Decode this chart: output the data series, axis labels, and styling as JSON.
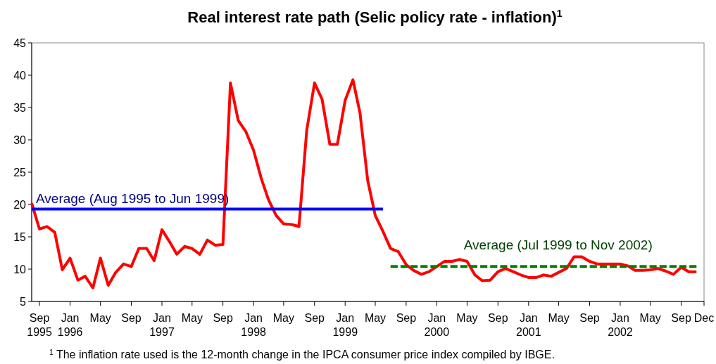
{
  "chart_data": {
    "type": "line",
    "title": "Real interest rate path (Selic policy rate - inflation)$^{1}$",
    "xlim": [
      "1995-08",
      "2002-12"
    ],
    "xticks": [
      {
        "value": "1995-09",
        "label": "Sep\n1995"
      },
      {
        "value": "1996-01",
        "label": "Jan\n1996"
      },
      {
        "value": "1996-05",
        "label": "May"
      },
      {
        "value": "1996-09",
        "label": "Sep"
      },
      {
        "value": "1997-01",
        "label": "Jan\n1997"
      },
      {
        "value": "1997-05",
        "label": "May"
      },
      {
        "value": "1997-09",
        "label": "Sep"
      },
      {
        "value": "1998-01",
        "label": "Jan\n1998"
      },
      {
        "value": "1998-05",
        "label": "May"
      },
      {
        "value": "1998-09",
        "label": "Sep"
      },
      {
        "value": "1999-01",
        "label": "Jan\n1999"
      },
      {
        "value": "1999-05",
        "label": "May"
      },
      {
        "value": "1999-09",
        "label": "Sep"
      },
      {
        "value": "2000-01",
        "label": "Jan\n2000"
      },
      {
        "value": "2000-05",
        "label": "May"
      },
      {
        "value": "2000-09",
        "label": "Sep"
      },
      {
        "value": "2001-01",
        "label": "Jan\n2001"
      },
      {
        "value": "2001-05",
        "label": "May"
      },
      {
        "value": "2001-09",
        "label": "Sep"
      },
      {
        "value": "2002-01",
        "label": "Jan\n2002"
      },
      {
        "value": "2002-05",
        "label": "May"
      },
      {
        "value": "2002-09",
        "label": "Sep"
      },
      {
        "value": "2002-12",
        "label": "Dec"
      }
    ],
    "ylim": [
      5,
      45
    ],
    "yticks": [
      5,
      10,
      15,
      20,
      25,
      30,
      35,
      40,
      45
    ],
    "grid": false,
    "marker": "none",
    "series": [
      {
        "color": "#ff0000",
        "line_style": "solid",
        "x": [
          "1995-08",
          "1995-09",
          "1995-10",
          "1995-11",
          "1995-12",
          "1996-01",
          "1996-02",
          "1996-03",
          "1996-04",
          "1996-05",
          "1996-06",
          "1996-07",
          "1996-08",
          "1996-09",
          "1996-10",
          "1996-11",
          "1996-12",
          "1997-01",
          "1997-02",
          "1997-03",
          "1997-04",
          "1997-05",
          "1997-06",
          "1997-07",
          "1997-08",
          "1997-09",
          "1997-10",
          "1997-11",
          "1997-12",
          "1998-01",
          "1998-02",
          "1998-03",
          "1998-04",
          "1998-05",
          "1998-06",
          "1998-07",
          "1998-08",
          "1998-09",
          "1998-10",
          "1998-11",
          "1998-12",
          "1999-01",
          "1999-02",
          "1999-03",
          "1999-04",
          "1999-05",
          "1999-06",
          "1999-07",
          "1999-08",
          "1999-09",
          "1999-10",
          "1999-11",
          "1999-12",
          "2000-01",
          "2000-02",
          "2000-03",
          "2000-04",
          "2000-05",
          "2000-06",
          "2000-07",
          "2000-08",
          "2000-09",
          "2000-10",
          "2000-11",
          "2000-12",
          "2001-01",
          "2001-02",
          "2001-03",
          "2001-04",
          "2001-05",
          "2001-06",
          "2001-07",
          "2001-08",
          "2001-09",
          "2001-10",
          "2001-11",
          "2001-12",
          "2002-01",
          "2002-02",
          "2002-03",
          "2002-04",
          "2002-05",
          "2002-06",
          "2002-07",
          "2002-08",
          "2002-09",
          "2002-10",
          "2002-11"
        ],
        "values": [
          20.2,
          16.2,
          16.6,
          15.7,
          9.9,
          11.7,
          8.3,
          8.9,
          7.1,
          11.7,
          7.5,
          9.5,
          10.8,
          10.4,
          13.2,
          13.2,
          11.3,
          16.1,
          14.2,
          12.3,
          13.5,
          13.2,
          12.3,
          14.5,
          13.7,
          13.8,
          38.8,
          33.0,
          31.3,
          28.4,
          24.0,
          20.8,
          18.3,
          17.0,
          16.9,
          16.6,
          31.5,
          38.8,
          36.3,
          29.3,
          29.3,
          36.1,
          39.3,
          34.2,
          23.7,
          18.3,
          15.8,
          13.2,
          12.7,
          10.7,
          9.8,
          9.2,
          9.6,
          10.4,
          11.2,
          11.2,
          11.5,
          11.2,
          9.1,
          8.2,
          8.3,
          9.6,
          10.1,
          9.6,
          9.1,
          8.7,
          8.7,
          9.1,
          8.9,
          9.5,
          10.1,
          11.9,
          11.9,
          11.2,
          10.8,
          10.8,
          10.8,
          10.8,
          10.5,
          9.8,
          9.8,
          9.9,
          10.1,
          9.7,
          9.2,
          10.3,
          9.6,
          9.6
        ]
      },
      {
        "color": "#0000ff",
        "line_style": "solid",
        "x": [
          "1995-08",
          "1999-06"
        ],
        "values": [
          19.3,
          19.3
        ]
      },
      {
        "color": "#008000",
        "line_style": "dashed",
        "x": [
          "1999-07",
          "2002-11"
        ],
        "values": [
          10.4,
          10.4
        ]
      }
    ],
    "annotations": [
      {
        "text": "Average (Aug 1995 to Jun 1999)",
        "x": "1995-08",
        "y": 19.3
      },
      {
        "text": "Average (Jul 1999 to Nov 2002)",
        "x": "2000-04",
        "y": 10.4
      },
      "$^{1}$ The inflation rate used is the 12-month change in the IPCA consumer price index compiled by IBGE."
    ]
  }
}
